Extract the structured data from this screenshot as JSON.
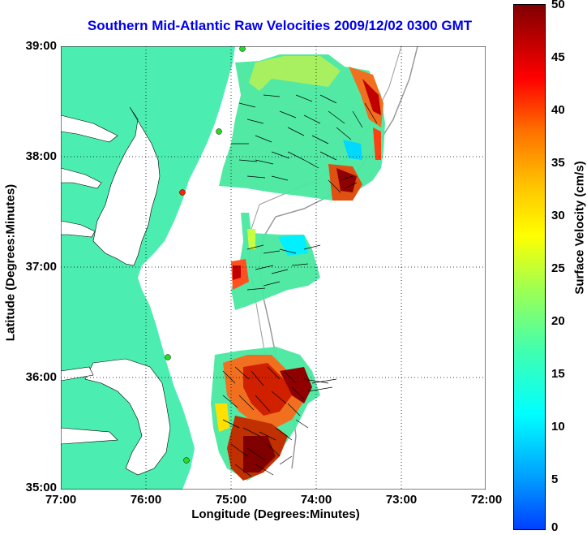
{
  "title": "Southern Mid-Atlantic Raw Velocities 2009/12/02 0300 GMT",
  "axes": {
    "xlabel": "Longitude (Degrees:Minutes)",
    "ylabel": "Latitude (Degrees:Minutes)",
    "xticks": [
      "77:00",
      "76:00",
      "75:00",
      "74:00",
      "73:00",
      "72:00"
    ],
    "yticks": [
      "39:00",
      "38:00",
      "37:00",
      "36:00",
      "35:00"
    ]
  },
  "colorbar": {
    "label": "Surface Velocity (cm/s)",
    "ticks": [
      "50",
      "45",
      "40",
      "35",
      "30",
      "25",
      "20",
      "15",
      "10",
      "5",
      "0"
    ],
    "min": 0,
    "max": 50
  },
  "colors": {
    "title": "#0000ee",
    "land": "#4cedb0",
    "grid": "#000000",
    "station_green": "#22dd22",
    "station_red": "#ff2200"
  },
  "grid": true
}
